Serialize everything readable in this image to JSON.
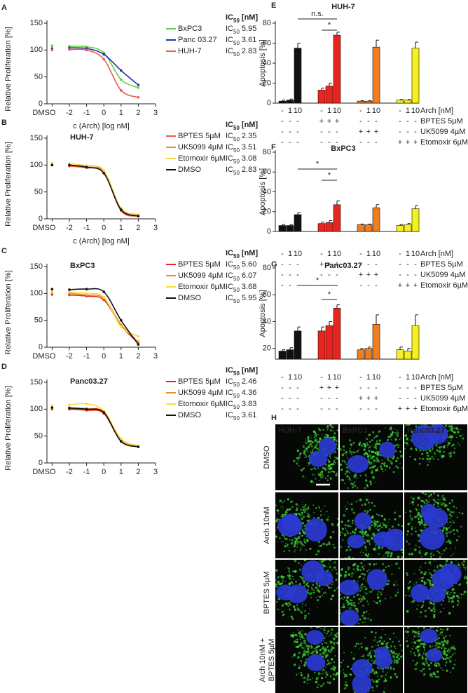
{
  "chart_data": [
    {
      "type": "line",
      "panel": "A",
      "x": [
        -3,
        -2,
        -1,
        0,
        1,
        2
      ],
      "xlim": [
        -3.3,
        3
      ],
      "ylim": [
        0,
        150
      ],
      "xticks": [
        {
          "value": -3,
          "label": "DMSO"
        },
        -2,
        -1,
        0,
        1,
        2,
        3
      ],
      "yticks": [
        0,
        50,
        100,
        150
      ],
      "xlabel": "c (Arch) [log nM]",
      "ylabel": "Relative Proliferation [%]",
      "ic50_text": "IC",
      "ic50_sub": "50",
      "ic50_unit": "[nM]",
      "series": [
        {
          "name": "BxPC3",
          "color": "#5ecf4a",
          "values": [
            108,
            107,
            106,
            95,
            45,
            30
          ],
          "ic50": 5.95
        },
        {
          "name": "Panc 03.27",
          "color": "#2233aa",
          "values": [
            103,
            104,
            103,
            92,
            62,
            35
          ],
          "ic50": 3.61
        },
        {
          "name": "HUH-7",
          "color": "#ee5a4e",
          "values": [
            100,
            101,
            100,
            83,
            25,
            12
          ],
          "ic50": 2.83
        }
      ]
    },
    {
      "type": "line",
      "panel": "B",
      "title": "HUH-7",
      "x": [
        -3,
        -2,
        -1,
        0,
        1,
        2
      ],
      "xlim": [
        -3.3,
        3
      ],
      "ylim": [
        0,
        150
      ],
      "xticks": [
        {
          "value": -3,
          "label": "DMSO"
        },
        -2,
        -1,
        0,
        1,
        2,
        3
      ],
      "yticks": [
        0,
        50,
        100,
        150
      ],
      "xlabel": "c (Arch) [log nM]",
      "ylabel": "Relative Proliferation [%]",
      "ic50_text": "IC",
      "ic50_sub": "50",
      "ic50_unit": "[nM]",
      "series": [
        {
          "name": "BPTES 5µM",
          "color": "#ee5a4e",
          "values": [
            100,
            98,
            95,
            88,
            15,
            5
          ],
          "ic50": 2.35
        },
        {
          "name": "UK5099 4µM",
          "color": "#f08a2a",
          "values": [
            101,
            100,
            97,
            86,
            18,
            6
          ],
          "ic50": 3.51
        },
        {
          "name": "Etomoxir 6µM",
          "color": "#f5d34a",
          "values": [
            104,
            102,
            99,
            90,
            20,
            8
          ],
          "ic50": 3.08
        },
        {
          "name": "DMSO",
          "color": "#111111",
          "values": [
            100,
            100,
            96,
            85,
            17,
            5
          ],
          "ic50": 2.83
        }
      ]
    },
    {
      "type": "line",
      "panel": "C",
      "title": "BxPC3",
      "x": [
        -3,
        -2,
        -1,
        0,
        1,
        2
      ],
      "xlim": [
        -3.3,
        3
      ],
      "ylim": [
        0,
        150
      ],
      "xticks": [
        {
          "value": -3,
          "label": "DMSO"
        },
        -2,
        -1,
        0,
        1,
        2,
        3
      ],
      "yticks": [
        0,
        50,
        100,
        150
      ],
      "ylabel": "Relative Proliferation [%]",
      "ic50_text": "IC",
      "ic50_sub": "50",
      "ic50_unit": "[nM]",
      "series": [
        {
          "name": "BPTES 5µM",
          "color": "#e8241e",
          "values": [
            98,
            97,
            95,
            88,
            40,
            8
          ],
          "ic50": 5.6,
          "ic50_label": "5.60"
        },
        {
          "name": "UK5099 4µM",
          "color": "#f08a2a",
          "values": [
            101,
            100,
            97,
            91,
            42,
            10
          ],
          "ic50": 6.07
        },
        {
          "name": "Etomoxir 6µM",
          "color": "#f5e03c",
          "values": [
            104,
            103,
            100,
            93,
            38,
            20
          ],
          "ic50": 3.68
        },
        {
          "name": "DMSO",
          "color": "#111111",
          "values": [
            108,
            107,
            108,
            103,
            50,
            5
          ],
          "ic50": 5.95
        }
      ]
    },
    {
      "type": "line",
      "panel": "D",
      "title": "Panc03.27",
      "x": [
        -3,
        -2,
        -1,
        0,
        1,
        2
      ],
      "xlim": [
        -3.3,
        3
      ],
      "ylim": [
        0,
        150
      ],
      "xticks": [
        {
          "value": -3,
          "label": "DMSO"
        },
        -2,
        -1,
        0,
        1,
        2,
        3
      ],
      "yticks": [
        0,
        50,
        100,
        150
      ],
      "ylabel": "Relative Proliferation [%]",
      "ic50_text": "IC",
      "ic50_sub": "50",
      "ic50_unit": "[nM]",
      "series": [
        {
          "name": "BPTES 5µM",
          "color": "#e8241e",
          "values": [
            100,
            100,
            98,
            92,
            40,
            30
          ],
          "ic50": 2.46
        },
        {
          "name": "UK5099 4µM",
          "color": "#f08a2a",
          "values": [
            102,
            103,
            101,
            95,
            42,
            31
          ],
          "ic50": 4.36
        },
        {
          "name": "Etomoxir 6µM",
          "color": "#f5e03c",
          "values": [
            107,
            108,
            110,
            97,
            45,
            32
          ],
          "ic50": 3.83
        },
        {
          "name": "DMSO",
          "color": "#111111",
          "values": [
            103,
            102,
            100,
            94,
            40,
            30
          ],
          "ic50": 3.61
        }
      ]
    },
    {
      "type": "bar",
      "panel": "E",
      "title": "HUH-7",
      "ylabel": "Apoptosis [%]",
      "ylim": [
        0,
        80
      ],
      "yticks": [
        0,
        20,
        40,
        60,
        80
      ],
      "values": [
        2,
        3,
        55,
        13,
        17,
        68,
        2,
        2,
        56,
        3,
        3,
        55
      ],
      "errors": [
        1,
        1,
        5,
        2,
        3,
        3,
        0.5,
        0.5,
        7,
        0.5,
        0.5,
        6
      ],
      "colors": [
        "#111111",
        "#111111",
        "#111111",
        "#e8241e",
        "#e8241e",
        "#e8241e",
        "#f07d1e",
        "#f07d1e",
        "#f07d1e",
        "#f5f01e",
        "#f5f01e",
        "#f5f01e"
      ],
      "significance": [
        "n.s.",
        "*"
      ],
      "conditions": [
        {
          "label": "Arch [nM]",
          "cells": [
            "-",
            "1",
            "10",
            "-",
            "1",
            "10",
            "-",
            "1",
            "10",
            "-",
            "1",
            "10"
          ]
        },
        {
          "label": "BPTES 5µM",
          "cells": [
            "-",
            "-",
            "-",
            "+",
            "+",
            "+",
            "-",
            "-",
            "-",
            "-",
            "-",
            "-"
          ]
        },
        {
          "label": "UK5099 4µM",
          "cells": [
            "-",
            "-",
            "-",
            "-",
            "-",
            "-",
            "+",
            "+",
            "+",
            "-",
            "-",
            "-"
          ]
        },
        {
          "label": "Etomoxir 6µM",
          "cells": [
            "-",
            "-",
            "-",
            "-",
            "-",
            "-",
            "-",
            "-",
            "-",
            "+",
            "+",
            "+"
          ]
        }
      ]
    },
    {
      "type": "bar",
      "panel": "F",
      "title": "BxPC3",
      "ylabel": "Apoptosis [%]",
      "ylim": [
        0,
        80
      ],
      "yticks": [
        0,
        20,
        40,
        60,
        80
      ],
      "values": [
        6,
        6,
        17,
        8,
        9,
        27,
        7,
        7,
        24,
        6,
        7,
        23
      ],
      "errors": [
        1,
        1,
        2,
        1.5,
        2,
        4,
        0.5,
        0.5,
        3,
        1,
        1,
        3
      ],
      "colors": [
        "#111111",
        "#111111",
        "#111111",
        "#e8241e",
        "#e8241e",
        "#e8241e",
        "#f07d1e",
        "#f07d1e",
        "#f07d1e",
        "#f5f01e",
        "#f5f01e",
        "#f5f01e"
      ],
      "significance": [
        "*",
        "*"
      ],
      "conditions": [
        {
          "label": "Arch [nM]",
          "cells": [
            "-",
            "1",
            "10",
            "-",
            "1",
            "10",
            "-",
            "1",
            "10",
            "-",
            "1",
            "10"
          ]
        },
        {
          "label": "BPTES 5µM",
          "cells": [
            "-",
            "-",
            "-",
            "+",
            "+",
            "+",
            "-",
            "-",
            "-",
            "-",
            "-",
            "-"
          ]
        },
        {
          "label": "UK5099 4µM",
          "cells": [
            "-",
            "-",
            "-",
            "-",
            "-",
            "-",
            "+",
            "+",
            "+",
            "-",
            "-",
            "-"
          ]
        },
        {
          "label": "Etomoxir 6µM",
          "cells": [
            "-",
            "-",
            "-",
            "-",
            "-",
            "-",
            "-",
            "-",
            "-",
            "+",
            "+",
            "+"
          ]
        }
      ]
    },
    {
      "type": "bar",
      "panel": "G",
      "title": "Panc03.27",
      "ylabel": "Apoptosis [%]",
      "ylim": [
        12,
        80
      ],
      "yticks": [
        20,
        40,
        60,
        80
      ],
      "values": [
        18,
        19,
        33,
        33,
        37,
        50,
        19,
        20,
        38,
        19,
        18,
        37
      ],
      "errors": [
        1,
        1.5,
        3,
        3,
        3,
        2.5,
        1,
        1,
        7,
        2,
        2,
        8
      ],
      "colors": [
        "#111111",
        "#111111",
        "#111111",
        "#e8241e",
        "#e8241e",
        "#e8241e",
        "#f07d1e",
        "#f07d1e",
        "#f07d1e",
        "#f5f01e",
        "#f5f01e",
        "#f5f01e"
      ],
      "significance": [
        "*",
        "*"
      ],
      "conditions": [
        {
          "label": "Arch [nM]",
          "cells": [
            "-",
            "1",
            "10",
            "-",
            "1",
            "10",
            "-",
            "1",
            "10",
            "-",
            "1",
            "10"
          ]
        },
        {
          "label": "BPTES 5µM",
          "cells": [
            "-",
            "-",
            "-",
            "+",
            "+",
            "+",
            "-",
            "-",
            "-",
            "-",
            "-",
            "-"
          ]
        },
        {
          "label": "UK5099 4µM",
          "cells": [
            "-",
            "-",
            "-",
            "-",
            "-",
            "-",
            "+",
            "+",
            "+",
            "-",
            "-",
            "-"
          ]
        },
        {
          "label": "Etomoxir 6µM",
          "cells": [
            "-",
            "-",
            "-",
            "-",
            "-",
            "-",
            "-",
            "-",
            "-",
            "+",
            "+",
            "+"
          ]
        }
      ]
    }
  ],
  "micrographs": {
    "panel": "H",
    "columns": [
      "HUH-7",
      "BxPC3",
      "Panc03.27"
    ],
    "rows": [
      [
        "DMSO"
      ],
      [
        "Arch 10nM"
      ],
      [
        "BPTES 5µM"
      ],
      [
        "Arch 10nM +",
        "BPTES 5µM"
      ]
    ]
  }
}
